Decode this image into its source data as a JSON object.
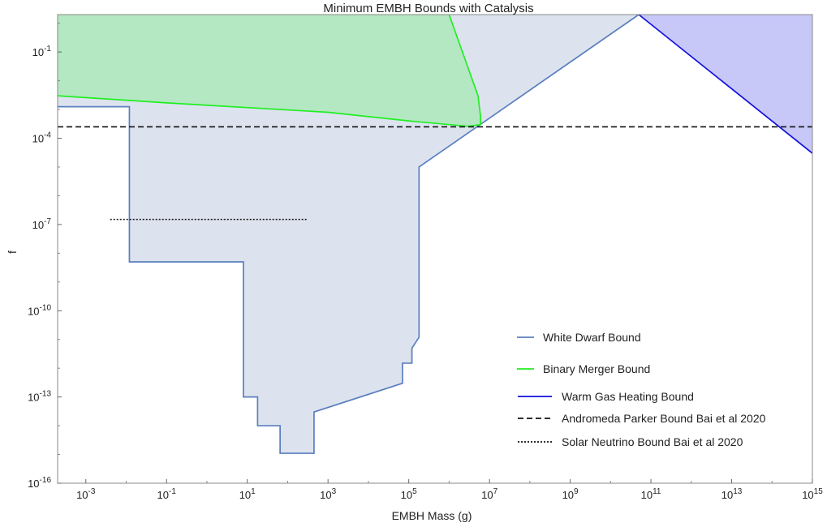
{
  "chart_data": {
    "type": "line",
    "title": "Minimum EMBH Bounds with Catalysis",
    "xlabel": "EMBH Mass (g)",
    "ylabel": "f",
    "x_scale": "log",
    "y_scale": "log",
    "xlim": [
      0.0002,
      1000000000000000.0
    ],
    "ylim": [
      1e-16,
      2
    ],
    "grid": false,
    "legend_position": "lower-right",
    "x_ticks": [
      {
        "value": 0.001,
        "base": "10",
        "exp": "-3"
      },
      {
        "value": 0.1,
        "base": "10",
        "exp": "-1"
      },
      {
        "value": 10,
        "base": "10",
        "exp": "1"
      },
      {
        "value": 1000,
        "base": "10",
        "exp": "3"
      },
      {
        "value": 100000,
        "base": "10",
        "exp": "5"
      },
      {
        "value": 10000000,
        "base": "10",
        "exp": "7"
      },
      {
        "value": 1000000000,
        "base": "10",
        "exp": "9"
      },
      {
        "value": 100000000000,
        "base": "10",
        "exp": "11"
      },
      {
        "value": 10000000000000,
        "base": "10",
        "exp": "13"
      },
      {
        "value": 1000000000000000,
        "base": "10",
        "exp": "15"
      }
    ],
    "y_ticks": [
      {
        "value": 1e-16,
        "base": "10",
        "exp": "-16"
      },
      {
        "value": 1e-13,
        "base": "10",
        "exp": "-13"
      },
      {
        "value": 1e-10,
        "base": "10",
        "exp": "-10"
      },
      {
        "value": 1e-07,
        "base": "10",
        "exp": "-7"
      },
      {
        "value": 0.0001,
        "base": "10",
        "exp": "-4"
      },
      {
        "value": 0.1,
        "base": "10",
        "exp": "-1"
      }
    ],
    "series": [
      {
        "name": "White Dwarf Bound",
        "color": "#5b7fbf",
        "fill": "#dce3ef",
        "dash": "solid",
        "x": [
          0.0002,
          0.012,
          0.012,
          8,
          8,
          18,
          18,
          65,
          65,
          450,
          450,
          70000,
          70000,
          120000,
          120000,
          180000,
          180000,
          50000000000
        ],
        "y": [
          0.00125,
          0.00125,
          5e-09,
          5e-09,
          1e-13,
          1e-13,
          1e-14,
          1e-14,
          1.1e-15,
          1.1e-15,
          3e-14,
          3e-13,
          1.5e-12,
          1.5e-12,
          5e-12,
          1.2e-11,
          1e-05,
          2
        ]
      },
      {
        "name": "Binary Merger Bound",
        "color": "#22ee22",
        "fill": "#b3e8c2",
        "dash": "solid",
        "x": [
          0.0002,
          0.1,
          1000,
          100000,
          3000000,
          6000000,
          6000000,
          5200000,
          1000000
        ],
        "y": [
          0.003,
          0.0017,
          0.0008,
          0.0004,
          0.00026,
          0.0003,
          0.0006,
          0.003,
          2
        ]
      },
      {
        "name": "Warm Gas Heating Bound",
        "color": "#1111dd",
        "fill": "#c7c7f8",
        "dash": "solid",
        "x": [
          50000000000,
          1000000000000000.0
        ],
        "y": [
          2,
          3e-05
        ]
      },
      {
        "name": "Andromeda Parker Bound Bai et al 2020",
        "color": "#111111",
        "dash": "dashed",
        "x": [
          0.0002,
          1000000000000000.0
        ],
        "y": [
          0.00025,
          0.00025
        ]
      },
      {
        "name": "Solar Neutrino Bound Bai et al 2020",
        "color": "#111111",
        "dash": "dotted",
        "x": [
          0.004,
          300
        ],
        "y": [
          1.5e-07,
          1.5e-07
        ]
      }
    ]
  }
}
